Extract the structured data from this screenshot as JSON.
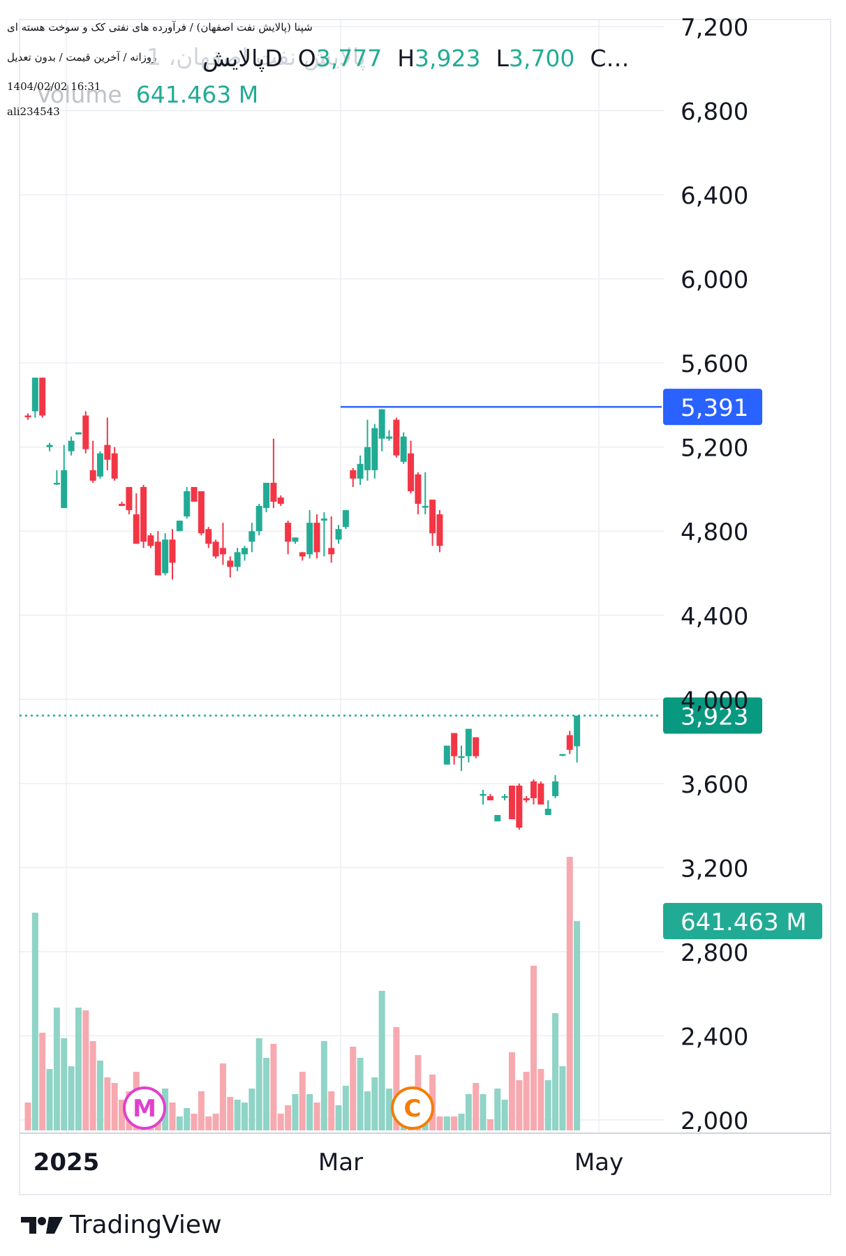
{
  "header": {
    "title_line": "شپنا (پالایش نفت اصفهان) / فرآورده های نفتی کک و سوخت هسته ای",
    "subtitle_line": "روزانه / آخرین قیمت / بدون تعدیل",
    "timestamp": "1404/02/02 16:31",
    "username": "ali234543",
    "symbol_watermark": "پالایش نفت اصفهان، 1",
    "legend_symbol": "پالایش",
    "interval": "D",
    "open_label": "O",
    "open_value": "3,777",
    "high_label": "H",
    "high_value": "3,923",
    "low_label": "L",
    "low_value": "3,700",
    "close_trunc": "C…",
    "volume_label": "Volume",
    "volume_value": "641.463 M"
  },
  "colors": {
    "up": "#22ab94",
    "down": "#f23645",
    "up_volume": "#8fd4c6",
    "down_volume": "#f7a9b0",
    "grid": "#eceef2",
    "hline": "#2962ff",
    "text": "#131722"
  },
  "badges": {
    "price_line": "5,391",
    "last_price": "3,923",
    "volume": "641.463 M",
    "marker_m": "M",
    "marker_c": "C"
  },
  "brand": {
    "name": "TradingView"
  },
  "chart_data": {
    "type": "candlestick",
    "y_axis": {
      "min": 2000,
      "max": 7200,
      "ticks": [
        "7,200",
        "6,800",
        "6,400",
        "6,000",
        "5,600",
        "5,200",
        "4,800",
        "4,400",
        "4,000",
        "3,600",
        "3,200",
        "2,800",
        "2,400",
        "2,000"
      ]
    },
    "x_axis": {
      "labels": [
        "2025",
        "Mar",
        "May"
      ]
    },
    "horizontal_line": 5391,
    "last_close": 3923,
    "candles": [
      {
        "o": 5350,
        "h": 5360,
        "l": 5330,
        "c": 5345,
        "v": 0.1
      },
      {
        "o": 5370,
        "h": 5530,
        "l": 5340,
        "c": 5530,
        "v": 0.78
      },
      {
        "o": 5530,
        "h": 5530,
        "l": 5340,
        "c": 5350,
        "v": 0.35
      },
      {
        "o": 5200,
        "h": 5220,
        "l": 5180,
        "c": 5210,
        "v": 0.22
      },
      {
        "o": 5030,
        "h": 5090,
        "l": 5020,
        "c": 5030,
        "v": 0.44
      },
      {
        "o": 4910,
        "h": 5210,
        "l": 4910,
        "c": 5090,
        "v": 0.33
      },
      {
        "o": 5180,
        "h": 5250,
        "l": 5160,
        "c": 5230,
        "v": 0.23
      },
      {
        "o": 5260,
        "h": 5270,
        "l": 5260,
        "c": 5270,
        "v": 0.44
      },
      {
        "o": 5350,
        "h": 5370,
        "l": 5170,
        "c": 5190,
        "v": 0.43
      },
      {
        "o": 5090,
        "h": 5230,
        "l": 5030,
        "c": 5040,
        "v": 0.32
      },
      {
        "o": 5060,
        "h": 5180,
        "l": 5050,
        "c": 5170,
        "v": 0.25
      },
      {
        "o": 5210,
        "h": 5340,
        "l": 5090,
        "c": 5140,
        "v": 0.19
      },
      {
        "o": 5170,
        "h": 5200,
        "l": 5040,
        "c": 5050,
        "v": 0.17
      },
      {
        "o": 4930,
        "h": 4940,
        "l": 4920,
        "c": 4920,
        "v": 0.11
      },
      {
        "o": 5010,
        "h": 5010,
        "l": 4880,
        "c": 4900,
        "v": 0.14
      },
      {
        "o": 4880,
        "h": 4980,
        "l": 4740,
        "c": 4740,
        "v": 0.21
      },
      {
        "o": 5010,
        "h": 5020,
        "l": 4720,
        "c": 4750,
        "v": 0.07
      },
      {
        "o": 4780,
        "h": 4790,
        "l": 4720,
        "c": 4730,
        "v": 0.11
      },
      {
        "o": 4750,
        "h": 4800,
        "l": 4590,
        "c": 4590,
        "v": 0.07
      },
      {
        "o": 4600,
        "h": 4790,
        "l": 4590,
        "c": 4760,
        "v": 0.15
      },
      {
        "o": 4760,
        "h": 4810,
        "l": 4570,
        "c": 4650,
        "v": 0.1
      },
      {
        "o": 4800,
        "h": 4850,
        "l": 4800,
        "c": 4850,
        "v": 0.05
      },
      {
        "o": 4870,
        "h": 5010,
        "l": 4860,
        "c": 4990,
        "v": 0.08
      },
      {
        "o": 5010,
        "h": 5010,
        "l": 4940,
        "c": 4940,
        "v": 0.06
      },
      {
        "o": 4990,
        "h": 4990,
        "l": 4780,
        "c": 4790,
        "v": 0.14
      },
      {
        "o": 4810,
        "h": 4820,
        "l": 4720,
        "c": 4740,
        "v": 0.05
      },
      {
        "o": 4750,
        "h": 4760,
        "l": 4670,
        "c": 4680,
        "v": 0.06
      },
      {
        "o": 4720,
        "h": 4840,
        "l": 4640,
        "c": 4690,
        "v": 0.24
      },
      {
        "o": 4660,
        "h": 4680,
        "l": 4580,
        "c": 4630,
        "v": 0.12
      },
      {
        "o": 4630,
        "h": 4720,
        "l": 4610,
        "c": 4700,
        "v": 0.11
      },
      {
        "o": 4690,
        "h": 4730,
        "l": 4660,
        "c": 4720,
        "v": 0.1
      },
      {
        "o": 4750,
        "h": 4840,
        "l": 4700,
        "c": 4800,
        "v": 0.15
      },
      {
        "o": 4800,
        "h": 4930,
        "l": 4780,
        "c": 4920,
        "v": 0.33
      },
      {
        "o": 4910,
        "h": 5030,
        "l": 4890,
        "c": 5030,
        "v": 0.26
      },
      {
        "o": 5030,
        "h": 5240,
        "l": 4910,
        "c": 4940,
        "v": 0.31
      },
      {
        "o": 4960,
        "h": 4970,
        "l": 4920,
        "c": 4930,
        "v": 0.06
      },
      {
        "o": 4840,
        "h": 4850,
        "l": 4690,
        "c": 4750,
        "v": 0.09
      },
      {
        "o": 4750,
        "h": 4770,
        "l": 4740,
        "c": 4770,
        "v": 0.13
      },
      {
        "o": 4700,
        "h": 4700,
        "l": 4660,
        "c": 4680,
        "v": 0.21
      },
      {
        "o": 4690,
        "h": 4900,
        "l": 4670,
        "c": 4840,
        "v": 0.13
      },
      {
        "o": 4840,
        "h": 4880,
        "l": 4670,
        "c": 4700,
        "v": 0.1
      },
      {
        "o": 4850,
        "h": 4890,
        "l": 4680,
        "c": 4860,
        "v": 0.32
      },
      {
        "o": 4720,
        "h": 4870,
        "l": 4650,
        "c": 4690,
        "v": 0.14
      },
      {
        "o": 4760,
        "h": 4830,
        "l": 4740,
        "c": 4810,
        "v": 0.09
      },
      {
        "o": 4820,
        "h": 4900,
        "l": 4810,
        "c": 4900,
        "v": 0.16
      },
      {
        "o": 5090,
        "h": 5100,
        "l": 5010,
        "c": 5050,
        "v": 0.3
      },
      {
        "o": 5050,
        "h": 5160,
        "l": 5020,
        "c": 5120,
        "v": 0.26
      },
      {
        "o": 5090,
        "h": 5330,
        "l": 5040,
        "c": 5200,
        "v": 0.14
      },
      {
        "o": 5090,
        "h": 5310,
        "l": 5050,
        "c": 5290,
        "v": 0.19
      },
      {
        "o": 5240,
        "h": 5380,
        "l": 5180,
        "c": 5380,
        "v": 0.5
      },
      {
        "o": 5240,
        "h": 5280,
        "l": 5230,
        "c": 5250,
        "v": 0.15
      },
      {
        "o": 5330,
        "h": 5340,
        "l": 5150,
        "c": 5160,
        "v": 0.37
      },
      {
        "o": 5130,
        "h": 5270,
        "l": 5120,
        "c": 5250,
        "v": 0.13
      },
      {
        "o": 5170,
        "h": 5230,
        "l": 4980,
        "c": 4990,
        "v": 0.15
      },
      {
        "o": 5070,
        "h": 5080,
        "l": 4880,
        "c": 4930,
        "v": 0.27
      },
      {
        "o": 4920,
        "h": 5080,
        "l": 4880,
        "c": 4920,
        "v": 0.07
      },
      {
        "o": 4950,
        "h": 4950,
        "l": 4730,
        "c": 4790,
        "v": 0.2
      },
      {
        "o": 4880,
        "h": 4900,
        "l": 4700,
        "c": 4730,
        "v": 0.05
      },
      {
        "o": 3690,
        "h": 3780,
        "l": 3690,
        "c": 3780,
        "v": 0.05
      },
      {
        "o": 3840,
        "h": 3840,
        "l": 3690,
        "c": 3730,
        "v": 0.05
      },
      {
        "o": 3730,
        "h": 3780,
        "l": 3660,
        "c": 3730,
        "v": 0.06
      },
      {
        "o": 3730,
        "h": 3860,
        "l": 3700,
        "c": 3860,
        "v": 0.13
      },
      {
        "o": 3820,
        "h": 3820,
        "l": 3720,
        "c": 3730,
        "v": 0.17
      },
      {
        "o": 3550,
        "h": 3570,
        "l": 3500,
        "c": 3550,
        "v": 0.13
      },
      {
        "o": 3540,
        "h": 3550,
        "l": 3520,
        "c": 3520,
        "v": 0.04
      },
      {
        "o": 3420,
        "h": 3450,
        "l": 3420,
        "c": 3450,
        "v": 0.15
      },
      {
        "o": 3540,
        "h": 3550,
        "l": 3520,
        "c": 3540,
        "v": 0.11
      },
      {
        "o": 3590,
        "h": 3590,
        "l": 3430,
        "c": 3430,
        "v": 0.28
      },
      {
        "o": 3590,
        "h": 3600,
        "l": 3380,
        "c": 3390,
        "v": 0.18
      },
      {
        "o": 3530,
        "h": 3540,
        "l": 3510,
        "c": 3520,
        "v": 0.21
      },
      {
        "o": 3610,
        "h": 3620,
        "l": 3500,
        "c": 3530,
        "v": 0.59
      },
      {
        "o": 3600,
        "h": 3610,
        "l": 3500,
        "c": 3500,
        "v": 0.22
      },
      {
        "o": 3450,
        "h": 3520,
        "l": 3450,
        "c": 3480,
        "v": 0.18
      },
      {
        "o": 3540,
        "h": 3640,
        "l": 3530,
        "c": 3610,
        "v": 0.42
      },
      {
        "o": 3740,
        "h": 3740,
        "l": 3730,
        "c": 3740,
        "v": 0.23
      },
      {
        "o": 3830,
        "h": 3850,
        "l": 3740,
        "c": 3760,
        "v": 0.98
      },
      {
        "o": 3777,
        "h": 3923,
        "l": 3700,
        "c": 3923,
        "v": 0.75
      }
    ]
  }
}
